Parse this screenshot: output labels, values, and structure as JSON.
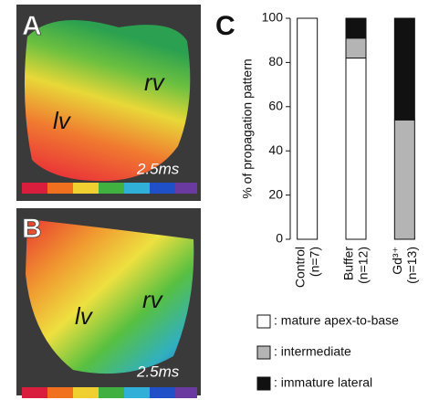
{
  "panels": [
    {
      "label": "A",
      "annotations": [
        "rv",
        "lv"
      ],
      "time": "2.5ms"
    },
    {
      "label": "B",
      "annotations": [
        "lv",
        "rv"
      ],
      "time": "2.5ms"
    }
  ],
  "chart_data": {
    "type": "stacked-bar",
    "panel_label": "C",
    "y_label": "% of propagation pattern",
    "categories": [
      "Control",
      "Buffer",
      "Gd³⁺"
    ],
    "category_notes": [
      "(n=7)",
      "(n=12)",
      "(n=13)"
    ],
    "series": [
      {
        "name": ": mature apex-to-base",
        "color": "#ffffff",
        "values": [
          100,
          82,
          0
        ]
      },
      {
        "name": ": intermediate",
        "color": "#b4b4b4",
        "values": [
          0,
          9,
          54
        ]
      },
      {
        "name": ": immature lateral",
        "color": "#111111",
        "values": [
          0,
          9,
          46
        ]
      }
    ],
    "ylim": [
      0,
      100
    ],
    "yticks": [
      0,
      20,
      40,
      60,
      80,
      100
    ]
  }
}
